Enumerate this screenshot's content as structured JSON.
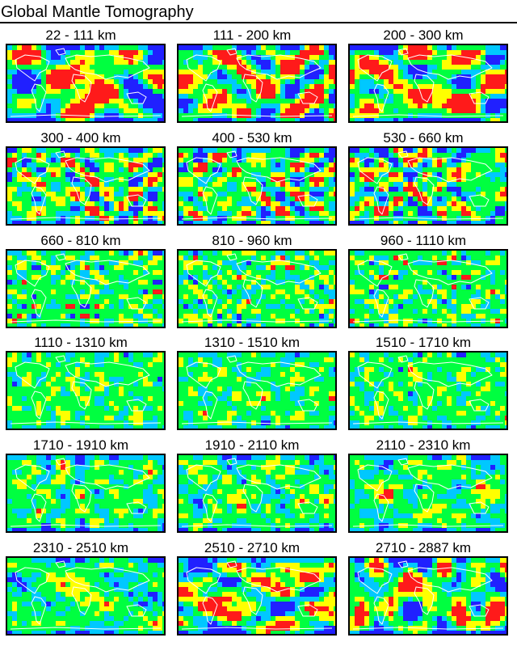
{
  "title": "Global Mantle Tomography",
  "colors": {
    "fast_strong": "#2020ff",
    "fast": "#00c8ff",
    "neutral": "#00ff40",
    "slow": "#ffff00",
    "slow_strong": "#ff1a1a",
    "coastline": "#ffffff"
  },
  "panels": [
    {
      "label": "22 - 111 km",
      "pattern": "shallow"
    },
    {
      "label": "111 - 200 km",
      "pattern": "shallow"
    },
    {
      "label": "200 - 300 km",
      "pattern": "shallow"
    },
    {
      "label": "300 - 400 km",
      "pattern": "transition"
    },
    {
      "label": "400 - 530 km",
      "pattern": "transition"
    },
    {
      "label": "530 - 660 km",
      "pattern": "transition"
    },
    {
      "label": "660 - 810 km",
      "pattern": "mid"
    },
    {
      "label": "810 - 960 km",
      "pattern": "mid"
    },
    {
      "label": "960 - 1110 km",
      "pattern": "mid"
    },
    {
      "label": "1110 - 1310 km",
      "pattern": "lower"
    },
    {
      "label": "1310 - 1510 km",
      "pattern": "lower"
    },
    {
      "label": "1510 - 1710 km",
      "pattern": "lower"
    },
    {
      "label": "1710 - 1910 km",
      "pattern": "deep"
    },
    {
      "label": "1910 - 2110 km",
      "pattern": "deep"
    },
    {
      "label": "2110 - 2310 km",
      "pattern": "deep"
    },
    {
      "label": "2310 - 2510 km",
      "pattern": "deep"
    },
    {
      "label": "2510 - 2710 km",
      "pattern": "cmb"
    },
    {
      "label": "2710 - 2887 km",
      "pattern": "cmb"
    }
  ]
}
